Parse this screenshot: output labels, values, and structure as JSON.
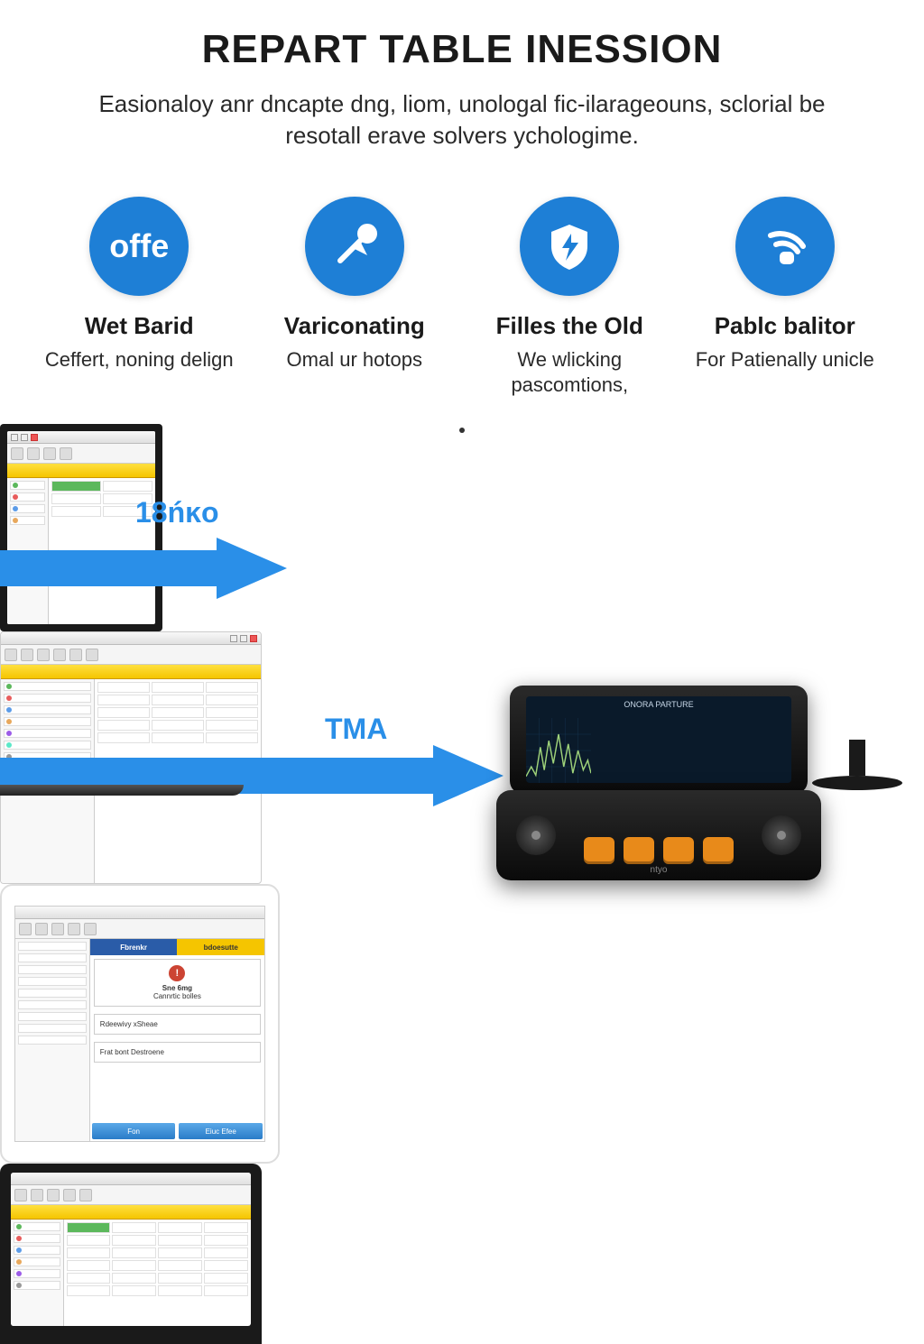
{
  "colors": {
    "accent": "#1e7fd6",
    "arrow": "#2a8fe8",
    "orange_btn": "#e88a1a",
    "yellow_ribbon": "#f5c500",
    "text": "#1a1a1a",
    "subtext": "#2a2a2a"
  },
  "header": {
    "title": "REPART TABLE INESSION",
    "subtitle": "Easionaloy anr dncapte dng, liom, unologal fic-ilarageouns, sclorial be resotall erave solvers ychologime."
  },
  "features": [
    {
      "icon": "offe-text",
      "icon_label": "offe",
      "title": "Wet Barid",
      "desc": "Ceffert, noning delign"
    },
    {
      "icon": "pointer-icon",
      "title": "Variconating",
      "desc": "Omal ur hotops"
    },
    {
      "icon": "shield-bolt-icon",
      "title": "Filles the Old",
      "desc": "We wlicking pascomtions,"
    },
    {
      "icon": "signal-icon",
      "title": "Pablc balitor",
      "desc": "For Patienally unicle"
    }
  ],
  "arrows": {
    "top_label": "18ńĸo",
    "bottom_label": "TMA"
  },
  "handheld": {
    "screen_title": "ONORA PARTURE",
    "brand": "ntyo",
    "chart": {
      "type": "line",
      "stroke": "#9fd37a",
      "stroke_width": 2,
      "background": "#0a1a2a",
      "grid_color": "#1a3a5a",
      "points": [
        [
          0,
          10
        ],
        [
          8,
          25
        ],
        [
          15,
          12
        ],
        [
          22,
          55
        ],
        [
          28,
          20
        ],
        [
          35,
          65
        ],
        [
          42,
          30
        ],
        [
          50,
          75
        ],
        [
          58,
          25
        ],
        [
          65,
          60
        ],
        [
          72,
          15
        ],
        [
          80,
          50
        ],
        [
          88,
          20
        ],
        [
          95,
          35
        ],
        [
          100,
          15
        ]
      ],
      "ylim": [
        0,
        100
      ]
    }
  },
  "tablet_white_ui": {
    "tabs": [
      {
        "label": "Fbrenkr",
        "color": "#2a5ca8"
      },
      {
        "label": "bdoesutte",
        "color": "#f5c500"
      }
    ],
    "alert_title": "Sne 6mg",
    "alert_subtitle": "Cannrtic bolles",
    "option1": "Rdeewivy xSheae",
    "option2": "Frat bont Destroene",
    "footer_btn1": "Fon",
    "footer_btn2": "Eiuc Efee"
  },
  "software_generic": {
    "side_colors": [
      "#5cb85c",
      "#e85c5c",
      "#5c9ce8",
      "#e8a85c",
      "#9c5ce8",
      "#5ce8c8",
      "#999999"
    ]
  }
}
